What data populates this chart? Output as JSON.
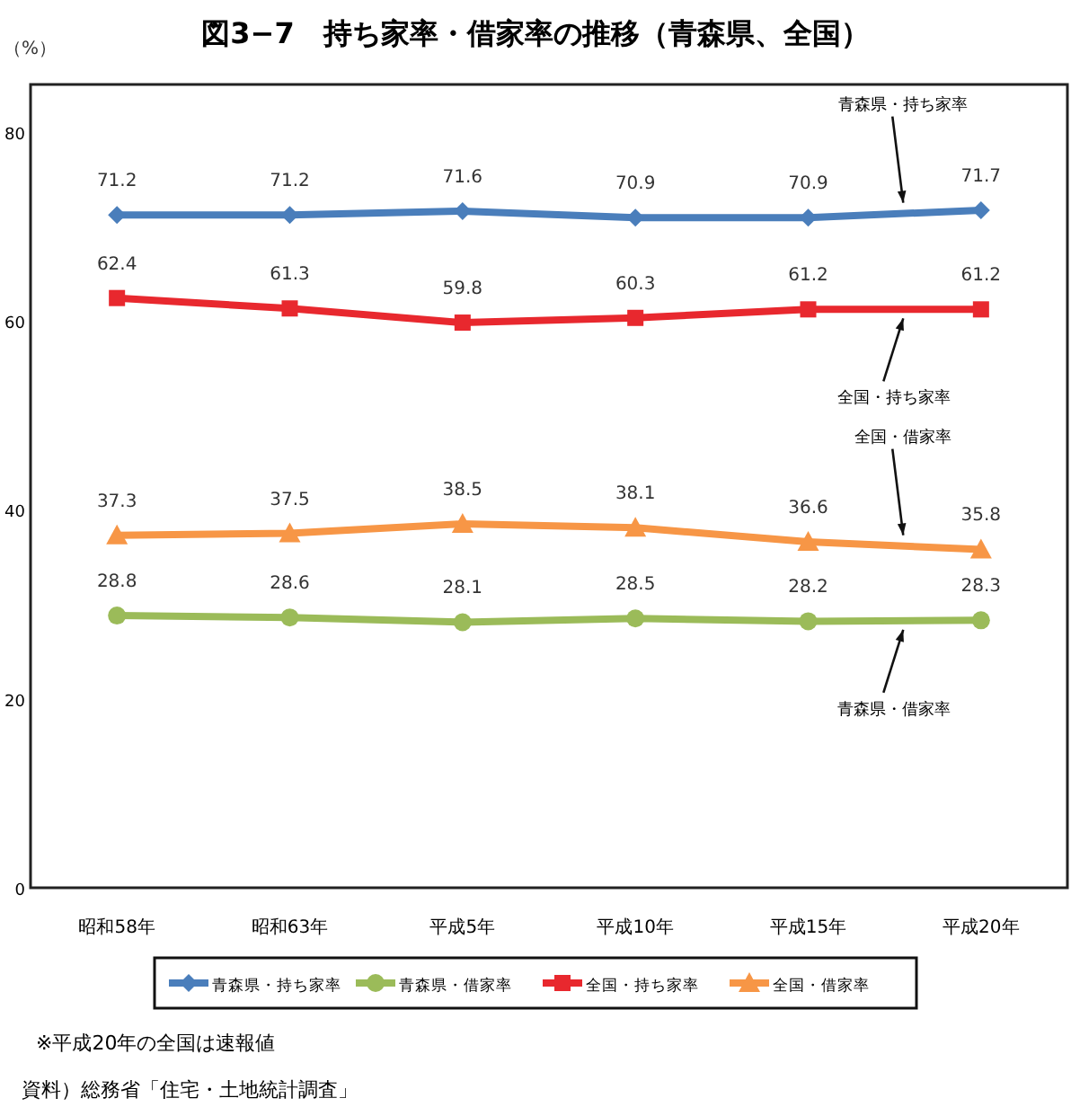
{
  "chart_data": {
    "type": "line",
    "title": "図3−7　持ち家率・借家率の推移（青森県、全国）",
    "ylabel": "（%）",
    "categories": [
      "昭和58年",
      "昭和63年",
      "平成5年",
      "平成10年",
      "平成15年",
      "平成20年"
    ],
    "series": [
      {
        "name": "青森県・持ち家率",
        "color": "#4a7ebb",
        "marker": "diamond",
        "values": [
          71.2,
          71.2,
          71.6,
          70.9,
          70.9,
          71.7
        ]
      },
      {
        "name": "青森県・借家率",
        "color": "#9bbb59",
        "marker": "circle",
        "values": [
          28.8,
          28.6,
          28.1,
          28.5,
          28.2,
          28.3
        ]
      },
      {
        "name": "全国・持ち家率",
        "color": "#e8282e",
        "marker": "square",
        "values": [
          62.4,
          61.3,
          59.8,
          60.3,
          61.2,
          61.2
        ]
      },
      {
        "name": "全国・借家率",
        "color": "#f79646",
        "marker": "triangle",
        "values": [
          37.3,
          37.5,
          38.5,
          38.1,
          36.6,
          35.8
        ]
      }
    ],
    "ylim": [
      0,
      85
    ],
    "yticks": [
      0,
      20,
      40,
      60,
      80
    ],
    "data_labels": true,
    "grid": false,
    "legend": "bottom",
    "annotations": [
      "※平成20年の全国は速報値",
      "資料）総務省「住宅・土地統計調査」"
    ]
  }
}
